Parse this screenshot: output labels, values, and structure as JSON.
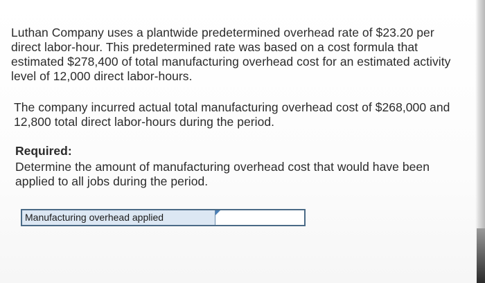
{
  "problem": {
    "paragraph1": "Luthan Company uses a plantwide predetermined overhead rate of $23.20 per direct labor-hour. This predetermined rate was based on a cost formula that estimated $278,400 of total manufacturing overhead cost for an estimated activity level of 12,000 direct labor-hours.",
    "paragraph2": "The company incurred actual total manufacturing overhead cost of $268,000 and 12,800 total direct labor-hours during the period.",
    "required_heading": "Required:",
    "required_text": "Determine the amount of manufacturing overhead cost that would have been applied to all jobs during the period."
  },
  "answer": {
    "label": "Manufacturing overhead applied",
    "value": ""
  },
  "colors": {
    "label_bg": "#dce7f3",
    "table_border": "#4a6a86",
    "marker": "#4a7fb5"
  }
}
